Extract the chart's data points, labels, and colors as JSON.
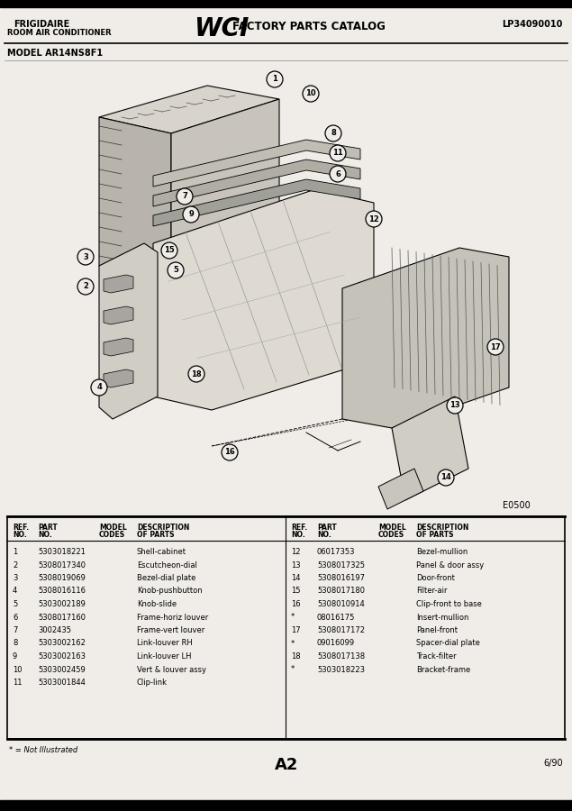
{
  "bg_color": "#f5f5f0",
  "page_bg": "#f0ede8",
  "header": {
    "left_line1": "FRIGIDAIRE",
    "left_line2": "ROOM AIR CONDITIONER",
    "center_text": "FACTORY PARTS CATALOG",
    "right_text": "LP34090010"
  },
  "model_text": "MODEL AR14NS8F1",
  "diagram_label": "E0500",
  "page_label": "A2",
  "page_date": "6/90",
  "footnote": "* = Not Illustrated",
  "parts_left": [
    [
      "1",
      "5303018221",
      "",
      "Shell-cabinet"
    ],
    [
      "2",
      "5308017340",
      "",
      "Escutcheon-dial"
    ],
    [
      "3",
      "5308019069",
      "",
      "Bezel-dial plate"
    ],
    [
      "4",
      "5308016116",
      "",
      "Knob-pushbutton"
    ],
    [
      "5",
      "5303002189",
      "",
      "Knob-slide"
    ],
    [
      "6",
      "5308017160",
      "",
      "Frame-horiz louver"
    ],
    [
      "7",
      "3002435",
      "",
      "Frame-vert louver"
    ],
    [
      "8",
      "5303002162",
      "",
      "Link-louver RH"
    ],
    [
      "9",
      "5303002163",
      "",
      "Link-louver LH"
    ],
    [
      "10",
      "5303002459",
      "",
      "Vert & louver assy"
    ],
    [
      "11",
      "5303001844",
      "",
      "Clip-link"
    ]
  ],
  "parts_right": [
    [
      "12",
      "06017353",
      "",
      "Bezel-mullion"
    ],
    [
      "13",
      "5308017325",
      "",
      "Panel & door assy"
    ],
    [
      "14",
      "5308016197",
      "",
      "Door-front"
    ],
    [
      "15",
      "5308017180",
      "",
      "Filter-air"
    ],
    [
      "16",
      "5308010914",
      "",
      "Clip-front to base"
    ],
    [
      "*",
      "08016175",
      "",
      "Insert-mullion"
    ],
    [
      "17",
      "5308017172",
      "",
      "Panel-front"
    ],
    [
      "*",
      "09016099",
      "",
      "Spacer-dial plate"
    ],
    [
      "18",
      "5308017138",
      "",
      "Track-filter"
    ],
    [
      "*",
      "5303018223",
      "",
      "Bracket-frame"
    ]
  ]
}
